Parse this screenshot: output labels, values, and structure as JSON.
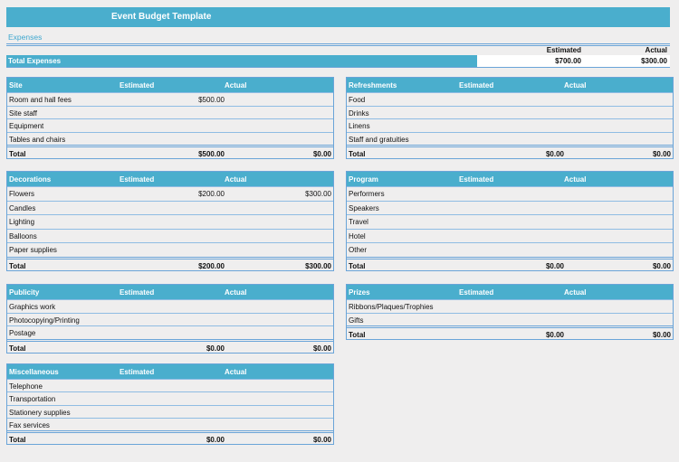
{
  "title": "Event Budget Template",
  "subtitle": "Expenses",
  "header": {
    "estimated": "Estimated",
    "actual": "Actual"
  },
  "total_expenses": {
    "label": "Total Expenses",
    "estimated": "$700.00",
    "actual": "$300.00"
  },
  "col_estimated": "Estimated",
  "col_actual": "Actual",
  "total_label": "Total",
  "panels": {
    "site": {
      "title": "Site",
      "rows": [
        {
          "name": "Room and hall fees",
          "est": "$500.00",
          "act": ""
        },
        {
          "name": "Site staff",
          "est": "",
          "act": ""
        },
        {
          "name": "Equipment",
          "est": "",
          "act": ""
        },
        {
          "name": "Tables and chairs",
          "est": "",
          "act": ""
        }
      ],
      "total_est": "$500.00",
      "total_act": "$0.00"
    },
    "refreshments": {
      "title": "Refreshments",
      "rows": [
        {
          "name": "Food",
          "est": "",
          "act": ""
        },
        {
          "name": "Drinks",
          "est": "",
          "act": ""
        },
        {
          "name": "Linens",
          "est": "",
          "act": ""
        },
        {
          "name": "Staff and gratuities",
          "est": "",
          "act": ""
        }
      ],
      "total_est": "$0.00",
      "total_act": "$0.00"
    },
    "decorations": {
      "title": "Decorations",
      "rows": [
        {
          "name": "Flowers",
          "est": "$200.00",
          "act": "$300.00"
        },
        {
          "name": "Candles",
          "est": "",
          "act": ""
        },
        {
          "name": "Lighting",
          "est": "",
          "act": ""
        },
        {
          "name": "Balloons",
          "est": "",
          "act": ""
        },
        {
          "name": "Paper supplies",
          "est": "",
          "act": ""
        }
      ],
      "total_est": "$200.00",
      "total_act": "$300.00"
    },
    "program": {
      "title": "Program",
      "rows": [
        {
          "name": "Performers",
          "est": "",
          "act": ""
        },
        {
          "name": "Speakers",
          "est": "",
          "act": ""
        },
        {
          "name": "Travel",
          "est": "",
          "act": ""
        },
        {
          "name": "Hotel",
          "est": "",
          "act": ""
        },
        {
          "name": "Other",
          "est": "",
          "act": ""
        }
      ],
      "total_est": "$0.00",
      "total_act": "$0.00"
    },
    "publicity": {
      "title": "Publicity",
      "rows": [
        {
          "name": "Graphics work",
          "est": "",
          "act": ""
        },
        {
          "name": "Photocopying/Printing",
          "est": "",
          "act": ""
        },
        {
          "name": "Postage",
          "est": "",
          "act": ""
        }
      ],
      "total_est": "$0.00",
      "total_act": "$0.00"
    },
    "prizes": {
      "title": "Prizes",
      "rows": [
        {
          "name": "Ribbons/Plaques/Trophies",
          "est": "",
          "act": ""
        },
        {
          "name": "Gifts",
          "est": "",
          "act": ""
        }
      ],
      "total_est": "$0.00",
      "total_act": "$0.00"
    },
    "misc": {
      "title": "Miscellaneous",
      "rows": [
        {
          "name": "Telephone",
          "est": "",
          "act": ""
        },
        {
          "name": "Transportation",
          "est": "",
          "act": ""
        },
        {
          "name": "Stationery supplies",
          "est": "",
          "act": ""
        },
        {
          "name": "Fax services",
          "est": "",
          "act": ""
        }
      ],
      "total_est": "$0.00",
      "total_act": "$0.00"
    }
  }
}
